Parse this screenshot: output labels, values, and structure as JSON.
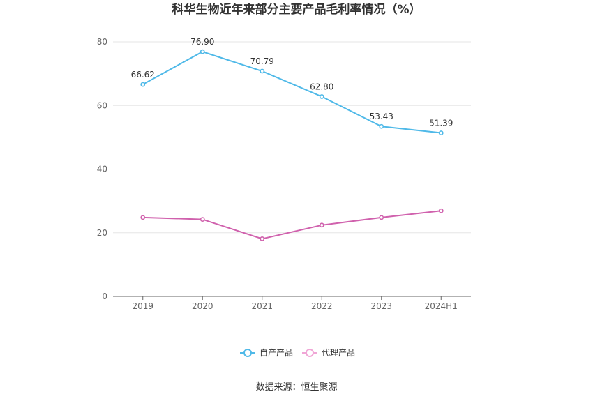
{
  "chart_data": {
    "type": "line",
    "title": "科华生物近年来部分主要产品毛利率情况（%）",
    "categories": [
      "2019",
      "2020",
      "2021",
      "2022",
      "2023",
      "2024H1"
    ],
    "ylim": [
      0,
      80
    ],
    "yticks": [
      0,
      20,
      40,
      60,
      80
    ],
    "xlabel": "",
    "ylabel": "",
    "grid": true,
    "legend_position": "bottom",
    "series": [
      {
        "name": "自产产品",
        "color": "#4fb9e8",
        "values": [
          66.62,
          76.9,
          70.79,
          62.8,
          53.43,
          51.39
        ],
        "labels": [
          "66.62",
          "76.90",
          "70.79",
          "62.80",
          "53.43",
          "51.39"
        ]
      },
      {
        "name": "代理产品",
        "color": "#d061ad",
        "values": [
          24.8,
          24.2,
          18.1,
          22.4,
          24.8,
          26.9
        ]
      }
    ],
    "source": "数据来源：恒生聚源"
  }
}
